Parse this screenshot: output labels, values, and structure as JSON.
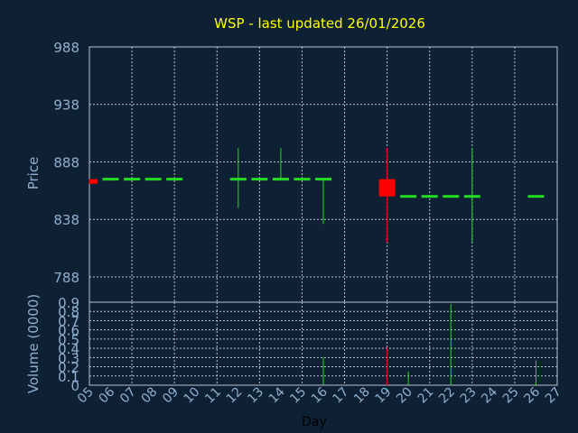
{
  "chart_data": {
    "type": "candlestick",
    "title": "WSP - last updated 26/01/2026",
    "xlabel": "Day",
    "x_ticks": [
      "05",
      "06",
      "07",
      "08",
      "09",
      "10",
      "11",
      "12",
      "13",
      "14",
      "15",
      "16",
      "17",
      "18",
      "19",
      "20",
      "21",
      "22",
      "23",
      "24",
      "25",
      "26",
      "27"
    ],
    "price": {
      "ylabel": "Price",
      "ylim": [
        766,
        988
      ],
      "y_ticks": [
        988,
        938,
        888,
        838,
        788
      ],
      "candles": [
        {
          "day": "05",
          "open": 873,
          "close": 869,
          "high": 873,
          "low": 869
        },
        {
          "day": "06",
          "open": 873,
          "close": 873,
          "high": 873,
          "low": 873
        },
        {
          "day": "07",
          "open": 873,
          "close": 873,
          "high": 873,
          "low": 873
        },
        {
          "day": "08",
          "open": 873,
          "close": 873,
          "high": 873,
          "low": 873
        },
        {
          "day": "09",
          "open": 873,
          "close": 873,
          "high": 873,
          "low": 873
        },
        {
          "day": "12",
          "open": 873,
          "close": 873,
          "high": 900,
          "low": 848
        },
        {
          "day": "13",
          "open": 873,
          "close": 873,
          "high": 873,
          "low": 873
        },
        {
          "day": "14",
          "open": 873,
          "close": 873,
          "high": 900,
          "low": 873
        },
        {
          "day": "15",
          "open": 873,
          "close": 873,
          "high": 873,
          "low": 873
        },
        {
          "day": "16",
          "open": 873,
          "close": 873,
          "high": 873,
          "low": 834
        },
        {
          "day": "19",
          "open": 873,
          "close": 858,
          "high": 900,
          "low": 818
        },
        {
          "day": "20",
          "open": 858,
          "close": 858,
          "high": 858,
          "low": 858
        },
        {
          "day": "21",
          "open": 858,
          "close": 858,
          "high": 858,
          "low": 858
        },
        {
          "day": "22",
          "open": 858,
          "close": 858,
          "high": 858,
          "low": 858
        },
        {
          "day": "23",
          "open": 858,
          "close": 858,
          "high": 900,
          "low": 818
        },
        {
          "day": "26",
          "open": 858,
          "close": 858,
          "high": 858,
          "low": 858
        }
      ]
    },
    "volume": {
      "ylabel": "Volume (0000)",
      "ylim": [
        0,
        0.9
      ],
      "y_ticks": [
        "0.9",
        "0.8",
        "0.7",
        "0.6",
        "0.5",
        "0.4",
        "0.3",
        "0.2",
        "0.1",
        "0"
      ],
      "bars": [
        {
          "day": "16",
          "value": 0.3
        },
        {
          "day": "19",
          "value": 0.4
        },
        {
          "day": "20",
          "value": 0.15
        },
        {
          "day": "22",
          "value": 0.88
        },
        {
          "day": "26",
          "value": 0.27
        }
      ]
    },
    "grid": true,
    "colors": {
      "background": "#0e2033",
      "title": "#ffff00",
      "axis_text": "#8fb0d0",
      "grid": "#b8c4d0",
      "up": "#22dd22",
      "down": "#ff0000"
    }
  }
}
